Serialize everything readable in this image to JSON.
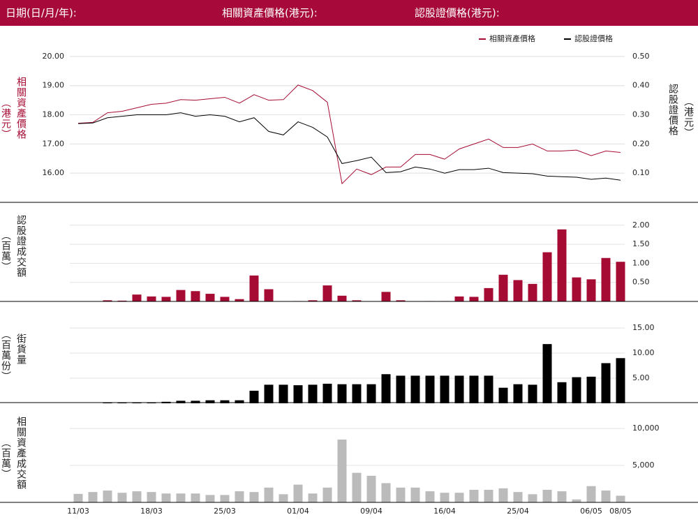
{
  "header": {
    "date_label": "日期(日/月/年):",
    "underlying_label": "相關資產價格(港元):",
    "warrant_label": "認股證價格(港元):"
  },
  "chart_data": [
    {
      "type": "line",
      "y_label": "相關資產價格",
      "y_label_unit": "（港元）",
      "y2_label": "認股證價格",
      "y2_label_unit": "（港元）",
      "ylim": [
        15,
        20.5
      ],
      "yticks": [
        {
          "value": 16,
          "label": "16.00"
        },
        {
          "value": 17,
          "label": "17.00"
        },
        {
          "value": 18,
          "label": "18.00"
        },
        {
          "value": 19,
          "label": "19.00"
        },
        {
          "value": 20,
          "label": "20.00"
        }
      ],
      "y2lim": [
        0,
        0.55
      ],
      "y2ticks": [
        {
          "value": 0.1,
          "label": "0.10"
        },
        {
          "value": 0.2,
          "label": "0.20"
        },
        {
          "value": 0.3,
          "label": "0.30"
        },
        {
          "value": 0.4,
          "label": "0.40"
        },
        {
          "value": 0.5,
          "label": "0.50"
        }
      ],
      "grid": true,
      "legend": "top-right",
      "series": [
        {
          "name": "相關資產價格",
          "color": "#a50b33",
          "values": [
            17.71,
            17.74,
            18.07,
            18.12,
            18.24,
            18.36,
            18.4,
            18.52,
            18.5,
            18.55,
            18.6,
            18.4,
            18.69,
            18.5,
            18.52,
            19.02,
            18.83,
            18.43,
            15.64,
            16.14,
            15.95,
            16.21,
            16.21,
            16.64,
            16.64,
            16.48,
            16.83,
            17.0,
            17.17,
            16.88,
            16.88,
            17.0,
            16.76,
            16.76,
            16.79,
            16.6,
            16.76,
            16.71
          ]
        },
        {
          "name": "認股證價格",
          "color": "#000000",
          "axis": "y2",
          "values": [
            0.27,
            0.272,
            0.29,
            0.295,
            0.3,
            0.3,
            0.3,
            0.307,
            0.295,
            0.3,
            0.295,
            0.276,
            0.29,
            0.243,
            0.231,
            0.276,
            0.257,
            0.224,
            0.133,
            0.143,
            0.155,
            0.102,
            0.105,
            0.121,
            0.114,
            0.1,
            0.112,
            0.112,
            0.117,
            0.102,
            0.1,
            0.098,
            0.09,
            0.088,
            0.086,
            0.079,
            0.083,
            0.076
          ]
        }
      ]
    },
    {
      "type": "bar",
      "y_label": "認股證成交額",
      "y_label_unit": "（百萬）",
      "color": "#a50b33",
      "grid": true,
      "ylim": [
        0,
        2.6
      ],
      "yticks": [
        {
          "value": 0.5,
          "label": "0.50"
        },
        {
          "value": 1,
          "label": "1.00"
        },
        {
          "value": 1.5,
          "label": "1.50"
        },
        {
          "value": 2,
          "label": "2.00"
        }
      ],
      "values": [
        0,
        0,
        0.03,
        0.02,
        0.18,
        0.13,
        0.12,
        0.3,
        0.27,
        0.2,
        0.12,
        0.06,
        0.68,
        0.32,
        0,
        0.01,
        0.03,
        0.42,
        0.15,
        0.03,
        0,
        0.25,
        0.03,
        0,
        0.01,
        0.01,
        0.13,
        0.12,
        0.35,
        0.7,
        0.56,
        0.46,
        1.29,
        1.89,
        0.63,
        0.58,
        1.14,
        1.04
      ]
    },
    {
      "type": "bar",
      "y_label": "街貨量",
      "y_label_unit": "（百萬份）",
      "color": "#000000",
      "grid": true,
      "ylim": [
        0,
        20.3
      ],
      "yticks": [
        {
          "value": 5,
          "label": "5.00"
        },
        {
          "value": 10,
          "label": "10.00"
        },
        {
          "value": 15,
          "label": "15.00"
        }
      ],
      "values": [
        0,
        0,
        0.2,
        0.2,
        0.2,
        0.2,
        0.3,
        0.5,
        0.5,
        0.6,
        0.6,
        0.6,
        2.5,
        3.7,
        3.7,
        3.6,
        3.7,
        3.9,
        3.8,
        3.8,
        3.8,
        5.8,
        5.5,
        5.5,
        5.5,
        5.5,
        5.5,
        5.5,
        5.5,
        3.1,
        3.8,
        3.7,
        11.8,
        4.2,
        5.2,
        5.3,
        8.0,
        9.0
      ]
    },
    {
      "type": "bar",
      "y_label": "相關資產成交額",
      "y_label_unit": "（百萬）",
      "color": "#bbbbbb",
      "grid": true,
      "ylim": [
        0,
        13500
      ],
      "yticks": [
        {
          "value": 5000,
          "label": "5,000"
        },
        {
          "value": 10000,
          "label": "10,000"
        }
      ],
      "categories": [
        "11/03",
        null,
        null,
        null,
        null,
        "18/03",
        null,
        null,
        null,
        null,
        "25/03",
        null,
        null,
        null,
        null,
        "01/04",
        null,
        null,
        null,
        null,
        "09/04",
        null,
        null,
        null,
        null,
        "16/04",
        null,
        null,
        null,
        null,
        "25/04",
        null,
        null,
        null,
        null,
        "06/05",
        null,
        "08/05"
      ],
      "values": [
        1150,
        1400,
        1600,
        1300,
        1500,
        1400,
        1200,
        1200,
        1200,
        1000,
        1000,
        1500,
        1400,
        2000,
        1100,
        2400,
        1200,
        2000,
        8500,
        4000,
        3600,
        2600,
        2000,
        2000,
        1500,
        1300,
        1300,
        1700,
        1700,
        1900,
        1400,
        1100,
        1700,
        1500,
        400,
        2200,
        1600,
        900
      ]
    }
  ]
}
